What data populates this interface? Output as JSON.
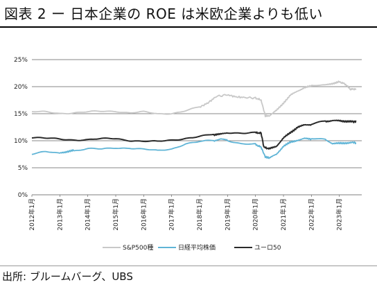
{
  "figure": {
    "title": "図表 2 ー 日本企業の ROE は米欧企業よりも低い",
    "source": "出所: ブルームバーグ、UBS"
  },
  "chart_data": {
    "type": "line",
    "title": "",
    "xlabel": "",
    "ylabel": "",
    "ylim": [
      0,
      25
    ],
    "yticks": [
      "0%",
      "5%",
      "10%",
      "15%",
      "20%",
      "25%"
    ],
    "xticks": [
      "2012年1月",
      "2013年1月",
      "2014年1月",
      "2015年1月",
      "2016年1月",
      "2017年1月",
      "2018年1月",
      "2019年1月",
      "2020年1月",
      "2021年1月",
      "2022年1月",
      "2023年1月"
    ],
    "legend_position": "bottom",
    "grid": "horizontal",
    "series": [
      {
        "name": "S&P500種",
        "color": "#c8c8c8",
        "points": [
          [
            2012.0,
            15.3
          ],
          [
            2012.5,
            15.3
          ],
          [
            2013.0,
            15.1
          ],
          [
            2013.5,
            15.2
          ],
          [
            2014.0,
            15.3
          ],
          [
            2014.5,
            15.4
          ],
          [
            2015.0,
            15.5
          ],
          [
            2015.5,
            15.2
          ],
          [
            2016.0,
            15.3
          ],
          [
            2016.5,
            14.9
          ],
          [
            2017.0,
            15.1
          ],
          [
            2017.5,
            15.6
          ],
          [
            2018.0,
            16.2
          ],
          [
            2018.3,
            17.0
          ],
          [
            2018.6,
            18.2
          ],
          [
            2019.0,
            18.5
          ],
          [
            2019.3,
            18.1
          ],
          [
            2019.6,
            18.0
          ],
          [
            2020.0,
            17.9
          ],
          [
            2020.2,
            17.5
          ],
          [
            2020.35,
            14.6
          ],
          [
            2020.5,
            14.6
          ],
          [
            2020.75,
            15.6
          ],
          [
            2021.0,
            17.0
          ],
          [
            2021.25,
            18.4
          ],
          [
            2021.5,
            19.2
          ],
          [
            2021.75,
            19.8
          ],
          [
            2022.0,
            20.1
          ],
          [
            2022.5,
            20.3
          ],
          [
            2022.75,
            20.6
          ],
          [
            2023.0,
            20.9
          ],
          [
            2023.2,
            20.5
          ],
          [
            2023.4,
            19.5
          ],
          [
            2023.6,
            19.6
          ]
        ]
      },
      {
        "name": "日経平均株価",
        "color": "#5fb4d6",
        "points": [
          [
            2012.0,
            7.5
          ],
          [
            2012.5,
            7.9
          ],
          [
            2013.0,
            7.7
          ],
          [
            2013.25,
            8.0
          ],
          [
            2013.5,
            8.2
          ],
          [
            2014.0,
            8.5
          ],
          [
            2014.5,
            8.4
          ],
          [
            2015.0,
            8.7
          ],
          [
            2015.5,
            8.7
          ],
          [
            2016.0,
            8.4
          ],
          [
            2016.5,
            8.1
          ],
          [
            2017.0,
            8.5
          ],
          [
            2017.5,
            9.5
          ],
          [
            2018.0,
            9.8
          ],
          [
            2018.5,
            10.0
          ],
          [
            2018.75,
            10.3
          ],
          [
            2019.0,
            10.1
          ],
          [
            2019.5,
            9.5
          ],
          [
            2020.0,
            9.3
          ],
          [
            2020.2,
            8.8
          ],
          [
            2020.35,
            7.0
          ],
          [
            2020.5,
            6.8
          ],
          [
            2020.75,
            7.5
          ],
          [
            2021.0,
            9.0
          ],
          [
            2021.25,
            9.7
          ],
          [
            2021.5,
            10.1
          ],
          [
            2021.75,
            10.4
          ],
          [
            2022.0,
            10.3
          ],
          [
            2022.5,
            10.2
          ],
          [
            2022.75,
            9.5
          ],
          [
            2023.0,
            9.5
          ],
          [
            2023.25,
            9.6
          ],
          [
            2023.5,
            9.7
          ],
          [
            2023.6,
            9.6
          ]
        ]
      },
      {
        "name": "ユーロ50",
        "color": "#2a2a2a",
        "points": [
          [
            2012.0,
            10.6
          ],
          [
            2012.5,
            10.4
          ],
          [
            2013.0,
            10.3
          ],
          [
            2013.5,
            10.2
          ],
          [
            2014.0,
            10.2
          ],
          [
            2014.5,
            10.3
          ],
          [
            2015.0,
            10.4
          ],
          [
            2015.5,
            10.1
          ],
          [
            2016.0,
            9.9
          ],
          [
            2016.5,
            9.8
          ],
          [
            2017.0,
            10.1
          ],
          [
            2017.5,
            10.5
          ],
          [
            2018.0,
            10.8
          ],
          [
            2018.5,
            11.1
          ],
          [
            2018.75,
            11.2
          ],
          [
            2019.0,
            11.5
          ],
          [
            2019.5,
            11.5
          ],
          [
            2020.0,
            11.5
          ],
          [
            2020.2,
            11.4
          ],
          [
            2020.3,
            8.8
          ],
          [
            2020.5,
            8.5
          ],
          [
            2020.75,
            9.0
          ],
          [
            2021.0,
            10.5
          ],
          [
            2021.25,
            11.5
          ],
          [
            2021.5,
            12.5
          ],
          [
            2021.75,
            12.9
          ],
          [
            2022.0,
            13.0
          ],
          [
            2022.5,
            13.6
          ],
          [
            2022.75,
            13.7
          ],
          [
            2023.0,
            13.7
          ],
          [
            2023.25,
            13.6
          ],
          [
            2023.5,
            13.5
          ],
          [
            2023.6,
            13.6
          ]
        ]
      }
    ]
  }
}
